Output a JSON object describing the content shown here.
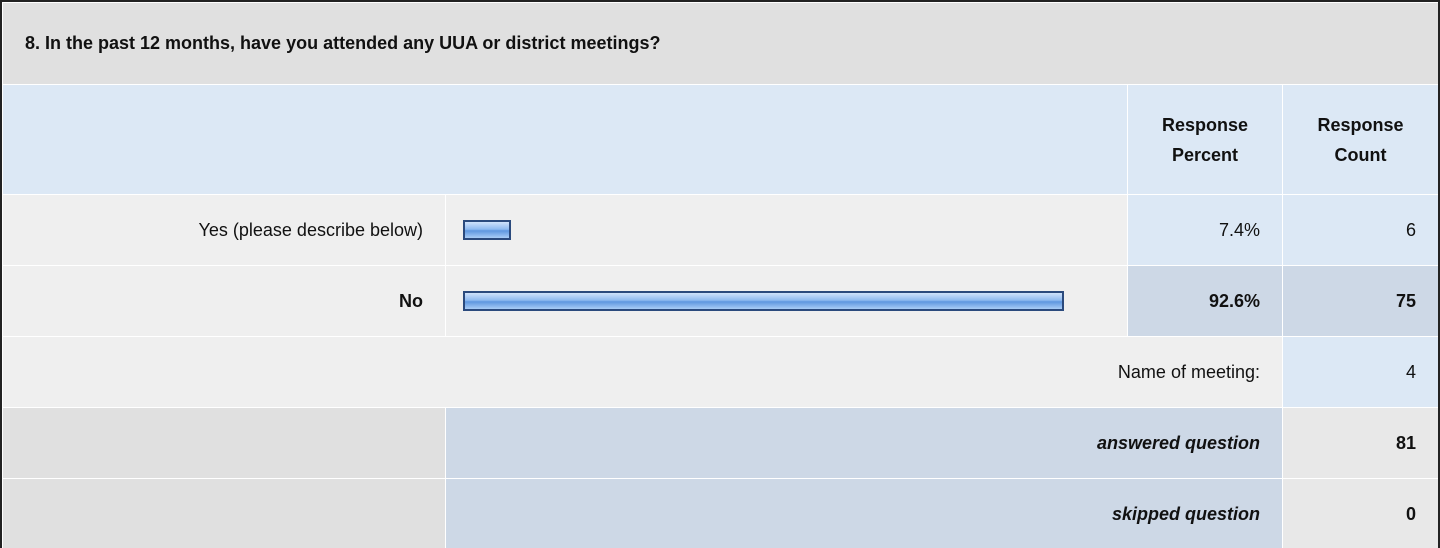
{
  "question": {
    "title": "8. In the past 12 months, have you attended any UUA or district meetings?"
  },
  "table": {
    "headers": {
      "percent": "Response Percent",
      "count": "Response Count"
    },
    "rows": [
      {
        "label": "Yes (please describe below)",
        "percent": 7.4,
        "percent_label": "7.4%",
        "count": 6,
        "bold": false
      },
      {
        "label": "No",
        "percent": 92.6,
        "percent_label": "92.6%",
        "count": 75,
        "bold": true
      }
    ],
    "other": {
      "label": "Name of meeting:",
      "count": 4
    },
    "answered": {
      "label": "answered question",
      "count": 81
    },
    "skipped": {
      "label": "skipped question",
      "count": 0
    }
  }
}
